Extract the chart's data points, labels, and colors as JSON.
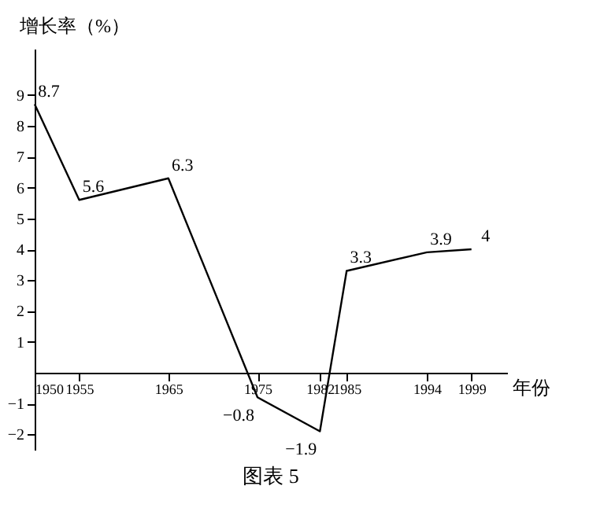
{
  "chart_data": {
    "type": "line",
    "title": "图表 5",
    "xlabel": "年份",
    "ylabel": "增长率（%）",
    "x": [
      1950,
      1955,
      1965,
      1975,
      1982,
      1985,
      1994,
      1999
    ],
    "series": [
      {
        "color": "#000000",
        "values": [
          8.7,
          5.6,
          6.3,
          -0.8,
          -1.9,
          3.3,
          3.9,
          4
        ]
      }
    ],
    "xlim": [
      1950,
      2003
    ],
    "xticks": [
      1950,
      1955,
      1965,
      1975,
      1982,
      1985,
      1994,
      1999
    ],
    "ylim": [
      -2.5,
      10.5
    ],
    "yticks": [
      -2,
      -1,
      1,
      2,
      3,
      4,
      5,
      6,
      7,
      8,
      9
    ],
    "data_labels": true,
    "grid": false,
    "marker": "none",
    "line_style": "solid"
  }
}
